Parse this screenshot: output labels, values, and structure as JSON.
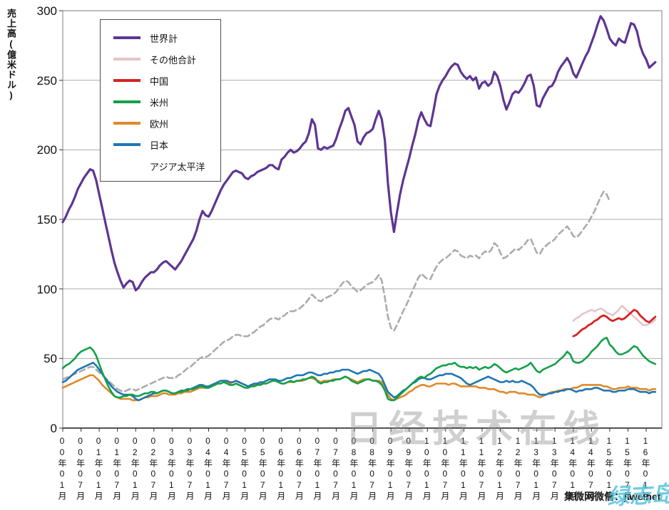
{
  "watermarks": {
    "main": "日经技术在线",
    "credit": "集微网微信：jiweinet",
    "script": "绿志岛"
  },
  "chart_data": {
    "type": "line",
    "title": "",
    "ylabel": "売上高(億米ドル)",
    "xlabel": "",
    "ylim": [
      0,
      300
    ],
    "yticks": [
      0,
      50,
      100,
      150,
      200,
      250,
      300
    ],
    "grid": "horizontal-only",
    "legend_position": "top-left-inside",
    "x_unit": "month",
    "x_start": "2000-01",
    "x_end": "2016-04",
    "xtick_interval_months": 6,
    "xtick_labels": [
      "00年01月",
      "00年07月",
      "01年01月",
      "01年07月",
      "02年01月",
      "02年07月",
      "03年01月",
      "03年07月",
      "04年01月",
      "04年07月",
      "05年01月",
      "05年07月",
      "06年01月",
      "06年07月",
      "07年01月",
      "07年07月",
      "08年01月",
      "08年07月",
      "09年01月",
      "09年07月",
      "10年01月",
      "10年07月",
      "11年01月",
      "11年07月",
      "12年01月",
      "12年07月",
      "13年01月",
      "13年07月",
      "14年01月",
      "14年07月",
      "15年01月",
      "15年07月",
      "16年01月"
    ],
    "series": [
      {
        "name": "世界計",
        "color": "#5E3592",
        "style": "solid",
        "width": 3.2,
        "start_month": "2000-01",
        "values": [
          148,
          152,
          157,
          161,
          166,
          172,
          176,
          180,
          183,
          186,
          185,
          178,
          168,
          158,
          148,
          138,
          128,
          119,
          112,
          106,
          101,
          104,
          106,
          105,
          99,
          101,
          105,
          108,
          110,
          112,
          112,
          114,
          117,
          119,
          120,
          118,
          116,
          114,
          117,
          120,
          124,
          128,
          132,
          136,
          142,
          150,
          156,
          153,
          152,
          156,
          161,
          166,
          171,
          175,
          178,
          181,
          184,
          185,
          184,
          183,
          180,
          179,
          181,
          182,
          184,
          185,
          186,
          187,
          189,
          189,
          187,
          186,
          193,
          195,
          198,
          200,
          198,
          199,
          201,
          204,
          206,
          212,
          222,
          218,
          201,
          200,
          202,
          201,
          202,
          203,
          208,
          215,
          221,
          228,
          230,
          224,
          218,
          206,
          204,
          209,
          212,
          213,
          215,
          222,
          228,
          222,
          207,
          176,
          155,
          141,
          155,
          168,
          178,
          186,
          194,
          203,
          211,
          221,
          227,
          222,
          218,
          217,
          228,
          240,
          246,
          250,
          253,
          257,
          260,
          262,
          261,
          256,
          253,
          251,
          253,
          250,
          252,
          244,
          248,
          249,
          246,
          248,
          256,
          253,
          246,
          236,
          229,
          234,
          240,
          242,
          241,
          244,
          248,
          253,
          254,
          246,
          232,
          231,
          237,
          241,
          245,
          246,
          250,
          256,
          260,
          263,
          266,
          262,
          255,
          252,
          257,
          262,
          267,
          271,
          277,
          283,
          290,
          296,
          293,
          287,
          280,
          277,
          275,
          280,
          278,
          277,
          284,
          291,
          290,
          285,
          275,
          269,
          265,
          259,
          261,
          263
        ]
      },
      {
        "name": "その他合計",
        "color": "#E2C7C6",
        "style": "solid",
        "width": 2.6,
        "start_month": "2014-01",
        "values": [
          77,
          79,
          80,
          82,
          83,
          84,
          85,
          84,
          85,
          86,
          85,
          83,
          82,
          81,
          83,
          85,
          88,
          86,
          84,
          82,
          80,
          78,
          76,
          74,
          74,
          75,
          76,
          78
        ]
      },
      {
        "name": "中国",
        "color": "#D42323",
        "style": "solid",
        "width": 2.8,
        "start_month": "2014-01",
        "values": [
          66,
          67,
          69,
          71,
          72,
          74,
          75,
          77,
          78,
          80,
          81,
          80,
          78,
          77,
          78,
          79,
          78,
          79,
          81,
          83,
          85,
          84,
          81,
          79,
          77,
          76,
          78,
          80
        ]
      },
      {
        "name": "米州",
        "color": "#13A049",
        "style": "solid",
        "width": 2.6,
        "start_month": "2000-01",
        "values": [
          43,
          45,
          46,
          48,
          50,
          53,
          55,
          56,
          57,
          58,
          56,
          52,
          46,
          40,
          35,
          30,
          26,
          23,
          22,
          22,
          23,
          23,
          24,
          24,
          23,
          23,
          24,
          25,
          25,
          26,
          26,
          25,
          26,
          27,
          27,
          26,
          25,
          25,
          26,
          26,
          27,
          27,
          28,
          28,
          29,
          30,
          30,
          29,
          29,
          30,
          31,
          32,
          32,
          33,
          32,
          31,
          31,
          32,
          31,
          30,
          29,
          29,
          30,
          30,
          31,
          31,
          32,
          32,
          33,
          34,
          34,
          33,
          32,
          32,
          33,
          34,
          33,
          34,
          34,
          35,
          35,
          36,
          37,
          36,
          33,
          32,
          33,
          33,
          34,
          34,
          35,
          35,
          36,
          37,
          36,
          34,
          33,
          32,
          33,
          34,
          35,
          35,
          34,
          34,
          33,
          31,
          27,
          21,
          20,
          20,
          22,
          24,
          26,
          28,
          30,
          32,
          34,
          36,
          37,
          36,
          38,
          39,
          41,
          43,
          44,
          45,
          45,
          46,
          46,
          47,
          45,
          44,
          44,
          43,
          44,
          43,
          44,
          42,
          43,
          44,
          43,
          44,
          46,
          45,
          43,
          41,
          40,
          41,
          42,
          43,
          42,
          43,
          44,
          45,
          47,
          44,
          41,
          40,
          42,
          43,
          44,
          45,
          46,
          48,
          50,
          52,
          55,
          53,
          48,
          47,
          47,
          48,
          50,
          52,
          55,
          57,
          59,
          62,
          64,
          65,
          60,
          58,
          55,
          53,
          53,
          54,
          55,
          57,
          59,
          58,
          55,
          52,
          50,
          48,
          47,
          46
        ]
      },
      {
        "name": "欧州",
        "color": "#DE8A28",
        "style": "solid",
        "width": 2.6,
        "start_month": "2000-01",
        "values": [
          29,
          30,
          31,
          32,
          33,
          34,
          35,
          36,
          37,
          38,
          38,
          36,
          34,
          31,
          29,
          27,
          25,
          23,
          22,
          21,
          21,
          21,
          21,
          20,
          20,
          20,
          21,
          22,
          22,
          23,
          23,
          23,
          24,
          25,
          25,
          24,
          24,
          24,
          25,
          25,
          26,
          26,
          26,
          27,
          28,
          29,
          29,
          29,
          29,
          30,
          31,
          32,
          32,
          33,
          33,
          32,
          33,
          34,
          33,
          32,
          31,
          30,
          31,
          31,
          32,
          32,
          32,
          32,
          33,
          34,
          34,
          33,
          32,
          32,
          33,
          33,
          33,
          34,
          34,
          34,
          35,
          36,
          36,
          35,
          34,
          33,
          34,
          34,
          34,
          35,
          35,
          35,
          36,
          37,
          36,
          35,
          34,
          33,
          34,
          35,
          35,
          35,
          34,
          34,
          34,
          33,
          29,
          24,
          21,
          20,
          21,
          22,
          23,
          24,
          26,
          27,
          29,
          30,
          31,
          31,
          30,
          30,
          31,
          32,
          32,
          32,
          32,
          31,
          32,
          32,
          31,
          30,
          30,
          30,
          30,
          30,
          30,
          29,
          29,
          29,
          28,
          28,
          28,
          27,
          26,
          26,
          25,
          26,
          26,
          26,
          25,
          25,
          25,
          24,
          24,
          24,
          23,
          22,
          23,
          24,
          25,
          26,
          26,
          27,
          27,
          28,
          28,
          28,
          29,
          29,
          30,
          31,
          31,
          31,
          31,
          31,
          31,
          31,
          30,
          30,
          29,
          28,
          28,
          29,
          29,
          29,
          30,
          29,
          29,
          29,
          28,
          28,
          28,
          27,
          28,
          28
        ]
      },
      {
        "name": "日本",
        "color": "#2076B4",
        "style": "solid",
        "width": 2.6,
        "start_month": "2000-01",
        "values": [
          33,
          34,
          36,
          38,
          40,
          42,
          43,
          44,
          45,
          46,
          47,
          45,
          42,
          39,
          36,
          33,
          30,
          28,
          26,
          25,
          24,
          24,
          24,
          23,
          21,
          20,
          21,
          22,
          23,
          24,
          25,
          25,
          26,
          27,
          27,
          26,
          25,
          25,
          26,
          27,
          27,
          28,
          28,
          29,
          30,
          31,
          31,
          30,
          30,
          31,
          32,
          33,
          34,
          34,
          34,
          33,
          33,
          34,
          33,
          32,
          31,
          30,
          31,
          32,
          32,
          33,
          33,
          34,
          35,
          35,
          35,
          34,
          34,
          35,
          36,
          36,
          37,
          38,
          38,
          38,
          39,
          40,
          40,
          39,
          38,
          38,
          39,
          39,
          40,
          40,
          41,
          41,
          42,
          42,
          42,
          41,
          40,
          39,
          40,
          41,
          41,
          42,
          41,
          40,
          39,
          36,
          31,
          26,
          24,
          22,
          23,
          25,
          27,
          28,
          30,
          32,
          33,
          35,
          36,
          36,
          35,
          35,
          36,
          37,
          38,
          38,
          39,
          39,
          39,
          38,
          37,
          36,
          34,
          32,
          31,
          32,
          33,
          34,
          35,
          36,
          37,
          36,
          35,
          34,
          33,
          33,
          34,
          33,
          34,
          33,
          33,
          34,
          33,
          32,
          31,
          29,
          26,
          24,
          24,
          24,
          25,
          25,
          26,
          26,
          27,
          27,
          28,
          28,
          27,
          26,
          27,
          27,
          28,
          28,
          28,
          29,
          29,
          28,
          27,
          27,
          27,
          26,
          26,
          27,
          27,
          27,
          28,
          28,
          28,
          27,
          26,
          26,
          26,
          25,
          26,
          26
        ]
      },
      {
        "name": "アジア太平洋",
        "color": "#ABABAB",
        "style": "dashed",
        "width": 2.6,
        "start_month": "2000-01",
        "values": [
          35,
          36,
          37,
          38,
          39,
          40,
          41,
          42,
          43,
          44,
          44,
          42,
          40,
          38,
          36,
          34,
          32,
          30,
          28,
          27,
          26,
          27,
          28,
          28,
          27,
          28,
          29,
          30,
          31,
          32,
          33,
          34,
          35,
          36,
          37,
          36,
          36,
          36,
          38,
          39,
          41,
          43,
          44,
          46,
          48,
          50,
          51,
          51,
          52,
          54,
          56,
          58,
          60,
          62,
          63,
          64,
          66,
          67,
          67,
          66,
          66,
          66,
          68,
          69,
          71,
          73,
          74,
          76,
          78,
          79,
          79,
          78,
          80,
          81,
          83,
          84,
          84,
          85,
          86,
          88,
          90,
          93,
          96,
          94,
          92,
          91,
          93,
          94,
          95,
          96,
          98,
          101,
          104,
          106,
          105,
          102,
          100,
          98,
          99,
          101,
          103,
          104,
          105,
          107,
          110,
          106,
          94,
          80,
          72,
          70,
          74,
          79,
          84,
          88,
          93,
          98,
          103,
          108,
          111,
          109,
          107,
          107,
          112,
          116,
          119,
          121,
          122,
          124,
          126,
          128,
          127,
          124,
          123,
          122,
          124,
          123,
          124,
          122,
          125,
          127,
          126,
          128,
          133,
          131,
          126,
          122,
          123,
          125,
          127,
          129,
          128,
          130,
          132,
          135,
          136,
          131,
          126,
          125,
          129,
          131,
          133,
          134,
          136,
          139,
          141,
          143,
          145,
          142,
          138,
          137,
          139,
          142,
          145,
          148,
          152,
          156,
          161,
          166,
          170,
          168,
          163
        ]
      }
    ]
  }
}
